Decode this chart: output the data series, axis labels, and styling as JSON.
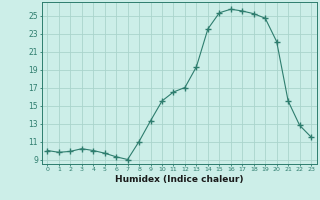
{
  "x": [
    0,
    1,
    2,
    3,
    4,
    5,
    6,
    7,
    8,
    9,
    10,
    11,
    12,
    13,
    14,
    15,
    16,
    17,
    18,
    19,
    20,
    21,
    22,
    23
  ],
  "y": [
    10.0,
    9.8,
    9.9,
    10.2,
    10.0,
    9.7,
    9.3,
    9.0,
    11.0,
    13.3,
    15.5,
    16.5,
    17.0,
    19.3,
    23.5,
    25.3,
    25.7,
    25.5,
    25.2,
    24.7,
    22.1,
    15.5,
    12.8,
    11.5
  ],
  "line_color": "#2e7d6e",
  "marker": "+",
  "marker_size": 4,
  "marker_linewidth": 1.0,
  "bg_color": "#cceee8",
  "grid_color": "#aad4cc",
  "xlabel": "Humidex (Indice chaleur)",
  "yticks": [
    9,
    11,
    13,
    15,
    17,
    19,
    21,
    23,
    25
  ],
  "xticks": [
    0,
    1,
    2,
    3,
    4,
    5,
    6,
    7,
    8,
    9,
    10,
    11,
    12,
    13,
    14,
    15,
    16,
    17,
    18,
    19,
    20,
    21,
    22,
    23
  ],
  "ylim": [
    8.5,
    26.5
  ],
  "xlim": [
    -0.5,
    23.5
  ]
}
